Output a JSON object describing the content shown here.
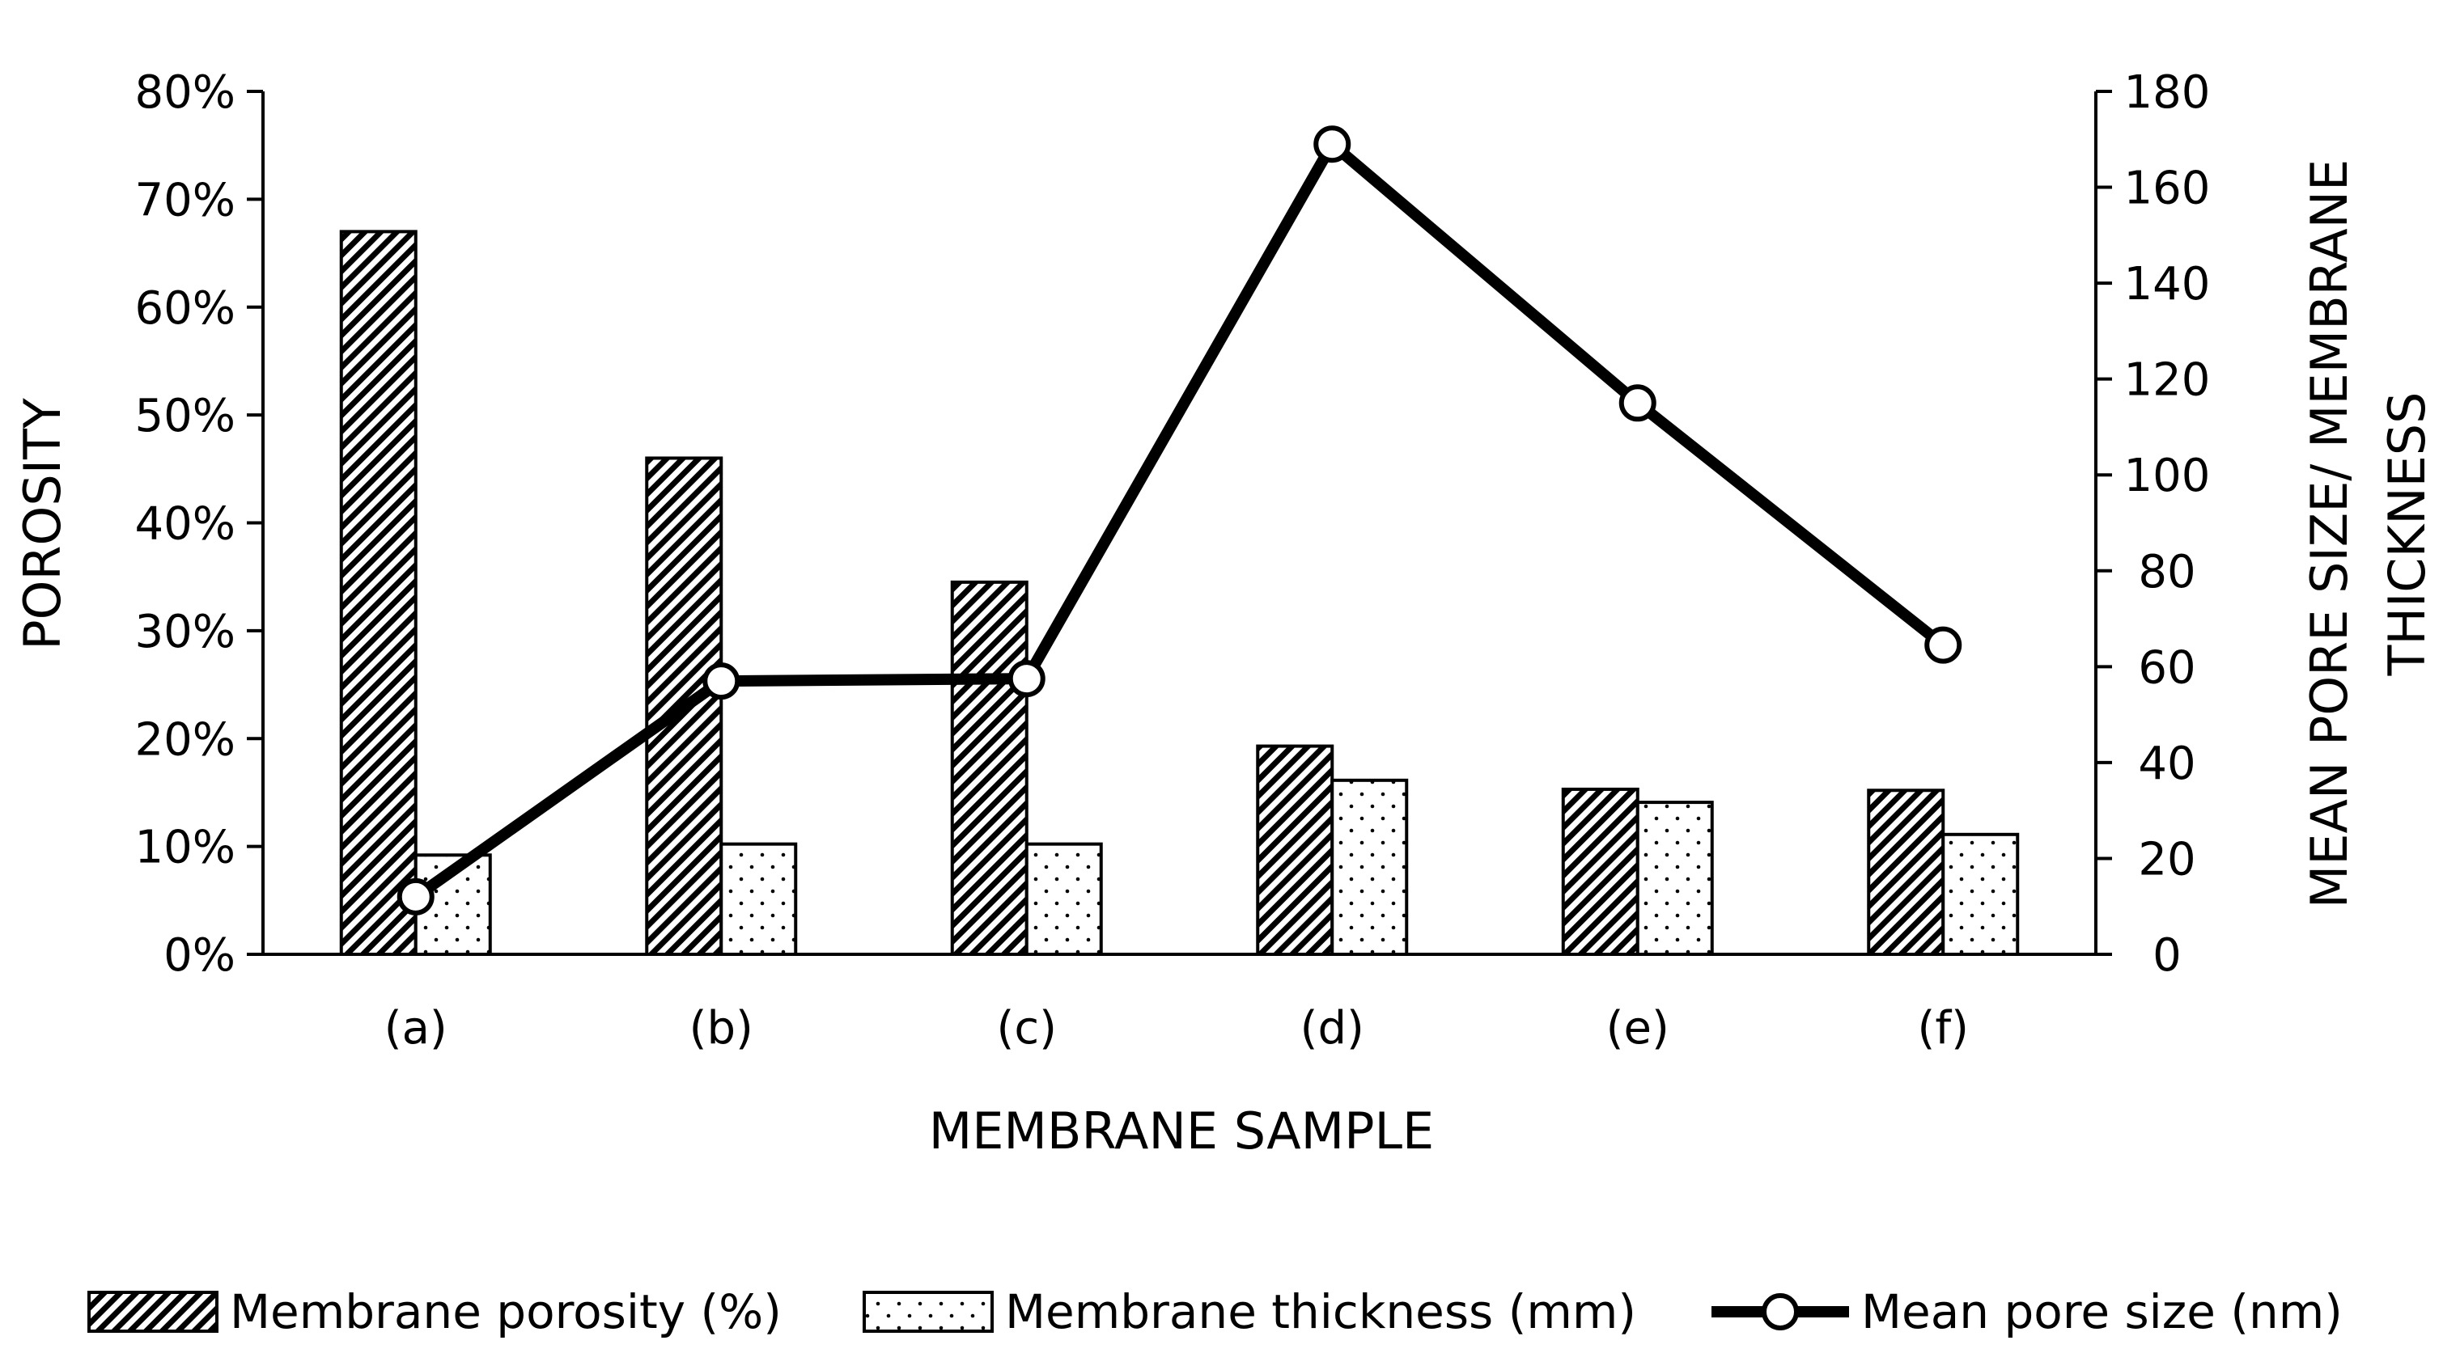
{
  "chart_data": {
    "type": "bar",
    "categories": [
      "(a)",
      "(b)",
      "(c)",
      "(d)",
      "(e)",
      "(f)"
    ],
    "series": [
      {
        "name": "Membrane porosity (%)",
        "axis": "left",
        "kind": "bar",
        "pattern": "diagonal-hatch",
        "values": [
          67,
          46,
          34.5,
          19.3,
          15.3,
          15.2
        ]
      },
      {
        "name": "Membrane thickness (mm)",
        "axis": "right",
        "kind": "bar",
        "pattern": "dots",
        "values": [
          20.7,
          23,
          23,
          36.3,
          31.7,
          25
        ]
      },
      {
        "name": "Mean pore size (nm)",
        "axis": "right",
        "kind": "line",
        "marker": "open-circle",
        "values": [
          12,
          57,
          57.5,
          169,
          115,
          64.5
        ]
      }
    ],
    "xlabel": "MEMBRANE SAMPLE",
    "ylabel_left": "POROSITY",
    "ylabel_right_line1": "MEAN PORE SIZE/ MEMBRANE",
    "ylabel_right_line2": "THICKNESS",
    "ylim_left": [
      0,
      80
    ],
    "yticks_left": [
      "0%",
      "10%",
      "20%",
      "30%",
      "40%",
      "50%",
      "60%",
      "70%",
      "80%"
    ],
    "ylim_right": [
      0,
      180
    ],
    "yticks_right": [
      "0",
      "20",
      "40",
      "60",
      "80",
      "100",
      "120",
      "140",
      "160",
      "180"
    ],
    "grid": false,
    "legend_position": "bottom",
    "colors": {
      "ink": "#000000",
      "left_axis_title": "#808080",
      "background": "#ffffff"
    }
  }
}
